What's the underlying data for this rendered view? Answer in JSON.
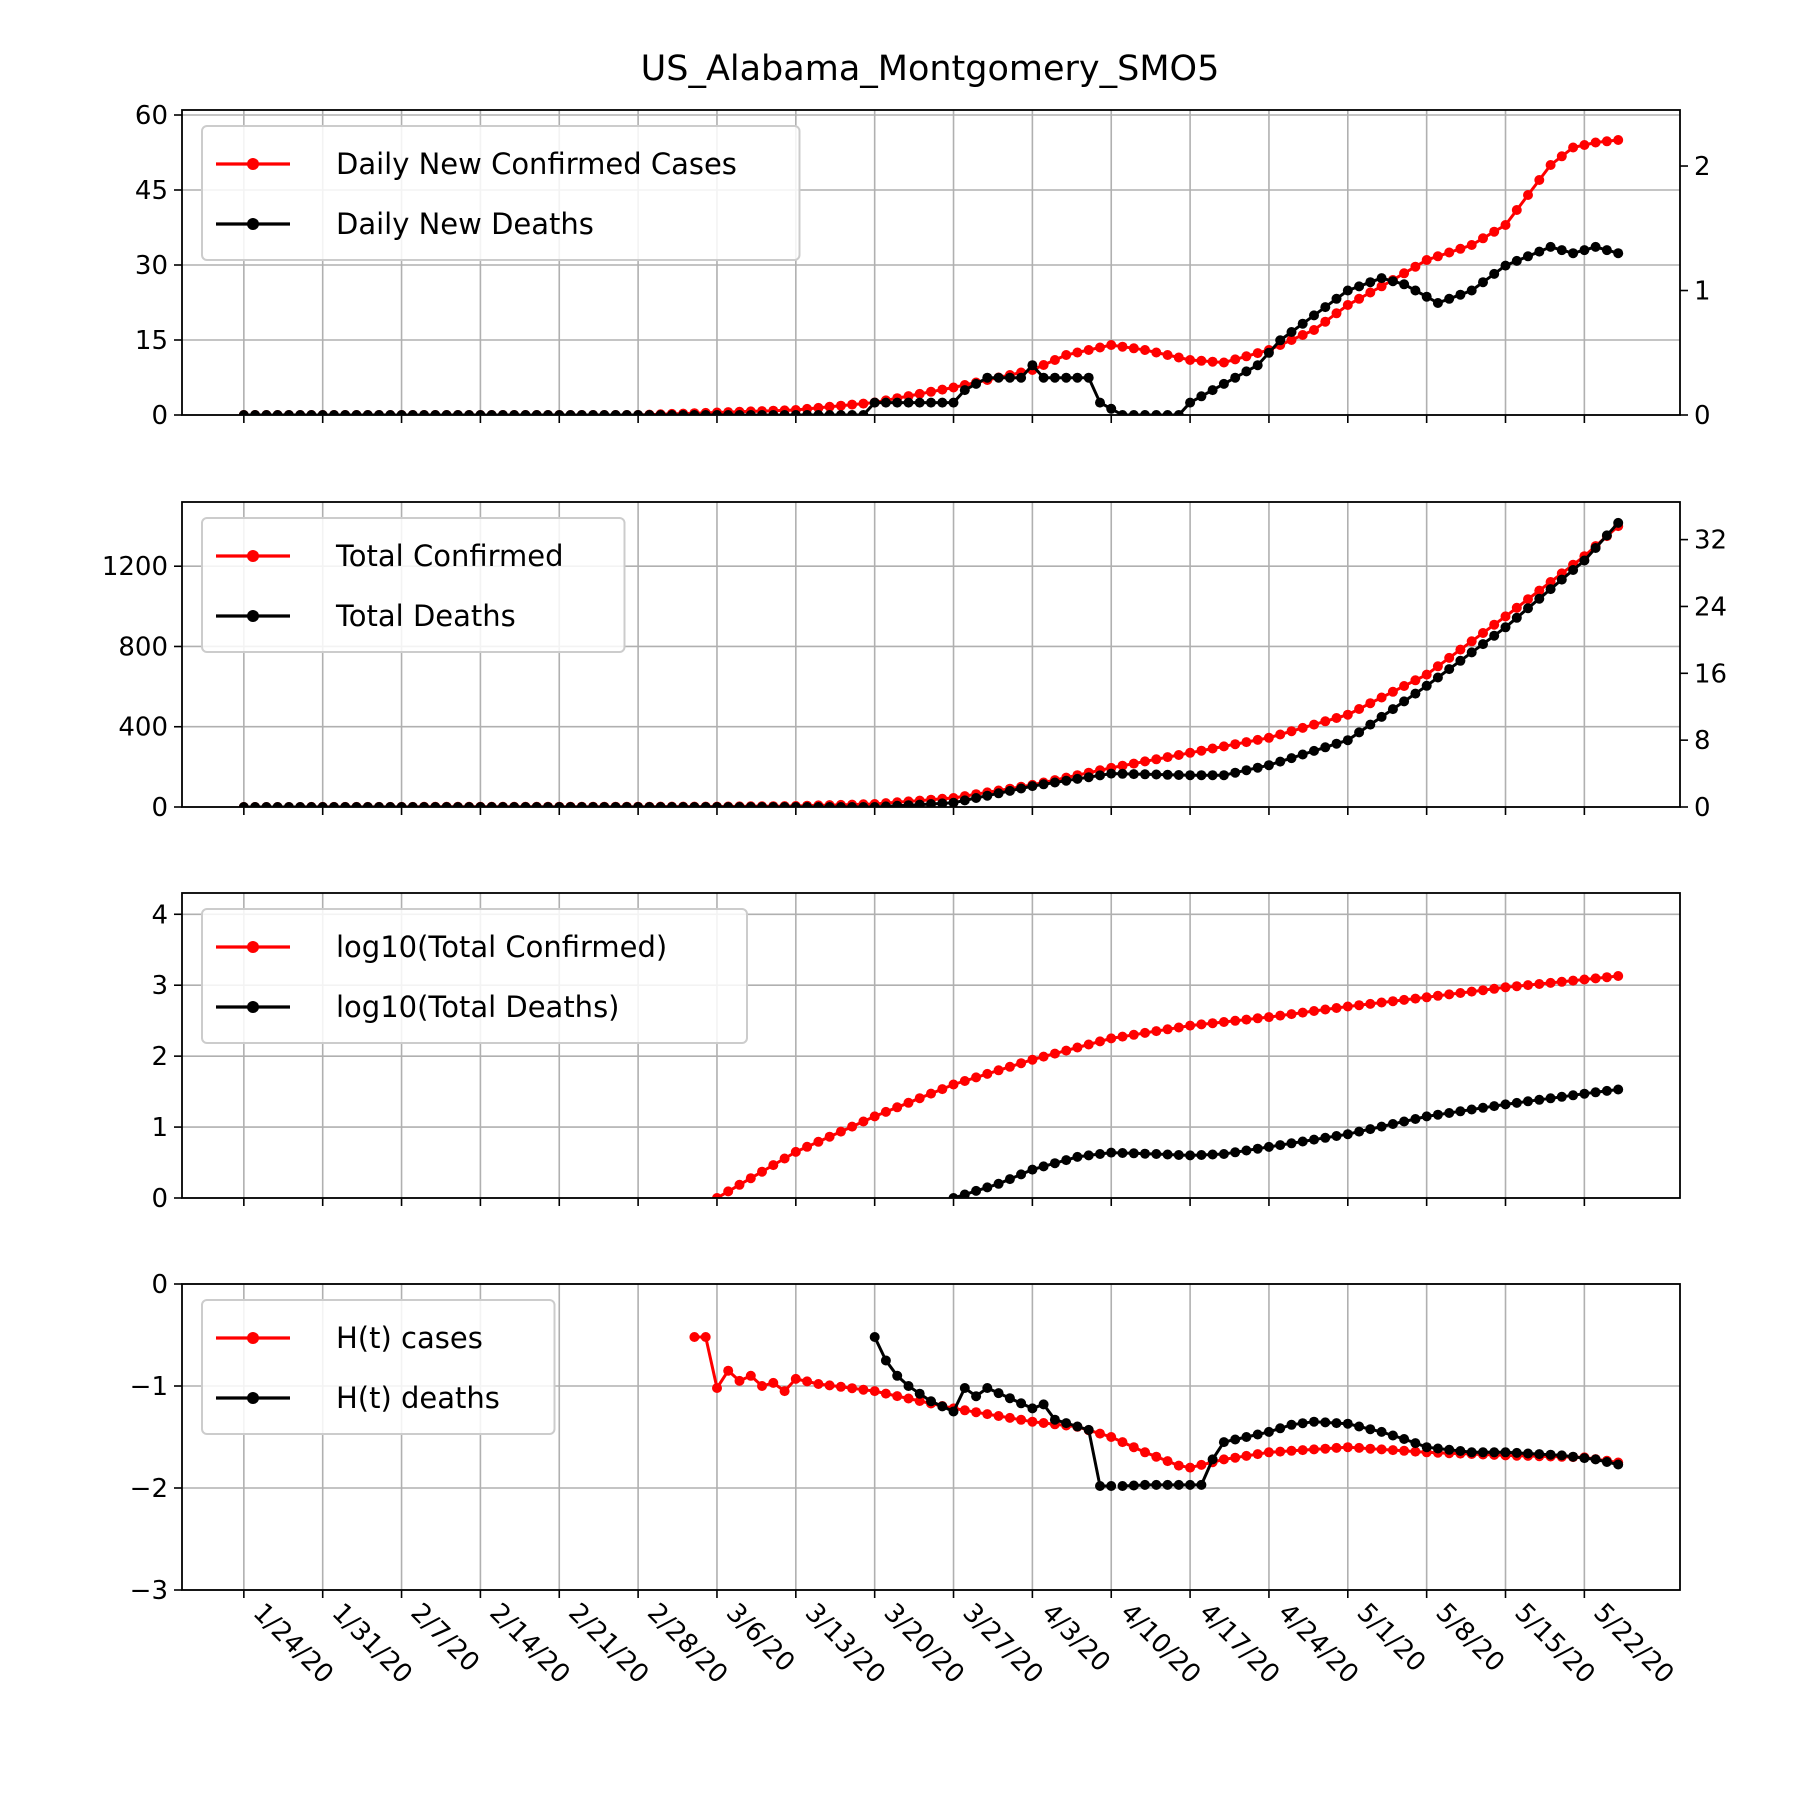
{
  "title": "US_Alabama_Montgomery_SMO5",
  "colors": {
    "cases": "#ff0000",
    "deaths": "#000000",
    "grid": "#b0b0b0"
  },
  "x_axis": {
    "date_range": [
      "1/24/20",
      "5/25/20"
    ],
    "tick_labels": [
      "1/24/20",
      "1/31/20",
      "2/7/20",
      "2/14/20",
      "2/21/20",
      "2/28/20",
      "3/6/20",
      "3/13/20",
      "3/20/20",
      "3/27/20",
      "4/3/20",
      "4/10/20",
      "4/17/20",
      "4/24/20",
      "5/1/20",
      "5/8/20",
      "5/15/20",
      "5/22/20"
    ]
  },
  "chart_data": [
    {
      "type": "line",
      "title": "US_Alabama_Montgomery_SMO5",
      "legend": {
        "placement": "top-left",
        "entries": [
          "Daily New Confirmed Cases",
          "Daily New Deaths"
        ]
      },
      "grid": true,
      "y_left": {
        "ylim": [
          0,
          61
        ],
        "ticks": [
          "0",
          "15",
          "30",
          "45",
          "60"
        ],
        "tick_values": [
          0,
          15,
          30,
          45,
          60
        ]
      },
      "y_right": {
        "ylim": [
          0,
          2.45
        ],
        "ticks": [
          "0",
          "1",
          "2"
        ],
        "tick_values": [
          0,
          1,
          2
        ]
      },
      "series": [
        {
          "name": "Daily New Confirmed Cases",
          "axis": "left",
          "color": "#ff0000",
          "points": [
            [
              "1/24/20",
              0
            ],
            [
              "2/28/20",
              0
            ],
            [
              "3/6/20",
              0.5
            ],
            [
              "3/13/20",
              1
            ],
            [
              "3/20/20",
              2.5
            ],
            [
              "3/27/20",
              5.5
            ],
            [
              "4/3/20",
              9
            ],
            [
              "4/6/20",
              12
            ],
            [
              "4/10/20",
              14
            ],
            [
              "4/13/20",
              13
            ],
            [
              "4/17/20",
              11
            ],
            [
              "4/20/20",
              10.5
            ],
            [
              "4/24/20",
              13
            ],
            [
              "4/28/20",
              17
            ],
            [
              "5/1/20",
              22
            ],
            [
              "5/5/20",
              27
            ],
            [
              "5/8/20",
              31
            ],
            [
              "5/12/20",
              34
            ],
            [
              "5/15/20",
              38
            ],
            [
              "5/17/20",
              44
            ],
            [
              "5/19/20",
              50
            ],
            [
              "5/21/20",
              53.5
            ],
            [
              "5/23/20",
              54.5
            ],
            [
              "5/25/20",
              55
            ]
          ]
        },
        {
          "name": "Daily New Deaths",
          "axis": "right",
          "color": "#000000",
          "points": [
            [
              "1/24/20",
              0
            ],
            [
              "3/19/20",
              0
            ],
            [
              "3/20/20",
              0.1
            ],
            [
              "3/27/20",
              0.1
            ],
            [
              "3/28/20",
              0.2
            ],
            [
              "3/30/20",
              0.3
            ],
            [
              "4/2/20",
              0.3
            ],
            [
              "4/3/20",
              0.4
            ],
            [
              "4/4/20",
              0.3
            ],
            [
              "4/8/20",
              0.3
            ],
            [
              "4/9/20",
              0.1
            ],
            [
              "4/11/20",
              0
            ],
            [
              "4/14/20",
              0
            ],
            [
              "4/16/20",
              0
            ],
            [
              "4/17/20",
              0.1
            ],
            [
              "4/19/20",
              0.2
            ],
            [
              "4/21/20",
              0.3
            ],
            [
              "4/23/20",
              0.4
            ],
            [
              "4/25/20",
              0.6
            ],
            [
              "4/28/20",
              0.8
            ],
            [
              "5/1/20",
              1
            ],
            [
              "5/4/20",
              1.1
            ],
            [
              "5/6/20",
              1.05
            ],
            [
              "5/9/20",
              0.9
            ],
            [
              "5/12/20",
              1
            ],
            [
              "5/15/20",
              1.2
            ],
            [
              "5/19/20",
              1.35
            ],
            [
              "5/21/20",
              1.3
            ],
            [
              "5/23/20",
              1.35
            ],
            [
              "5/25/20",
              1.3
            ]
          ]
        }
      ]
    },
    {
      "type": "line",
      "legend": {
        "placement": "top-left",
        "entries": [
          "Total Confirmed",
          "Total Deaths"
        ]
      },
      "grid": true,
      "y_left": {
        "ylim": [
          0,
          1520
        ],
        "ticks": [
          "0",
          "400",
          "800",
          "1200"
        ],
        "tick_values": [
          0,
          400,
          800,
          1200
        ]
      },
      "y_right": {
        "ylim": [
          0,
          36.5
        ],
        "ticks": [
          "0",
          "8",
          "16",
          "24",
          "32"
        ],
        "tick_values": [
          0,
          8,
          16,
          24,
          32
        ]
      },
      "series": [
        {
          "name": "Total Confirmed",
          "axis": "left",
          "color": "#ff0000",
          "points": [
            [
              "1/24/20",
              0
            ],
            [
              "3/6/20",
              2
            ],
            [
              "3/13/20",
              5
            ],
            [
              "3/20/20",
              15
            ],
            [
              "3/27/20",
              45
            ],
            [
              "4/3/20",
              110
            ],
            [
              "4/10/20",
              195
            ],
            [
              "4/17/20",
              270
            ],
            [
              "4/24/20",
              345
            ],
            [
              "5/1/20",
              460
            ],
            [
              "5/8/20",
              660
            ],
            [
              "5/15/20",
              950
            ],
            [
              "5/22/20",
              1250
            ],
            [
              "5/25/20",
              1400
            ]
          ]
        },
        {
          "name": "Total Deaths",
          "axis": "right",
          "color": "#000000",
          "points": [
            [
              "1/24/20",
              0
            ],
            [
              "3/20/20",
              0
            ],
            [
              "3/27/20",
              0.5
            ],
            [
              "4/3/20",
              2.5
            ],
            [
              "4/10/20",
              4
            ],
            [
              "4/17/20",
              3.8
            ],
            [
              "4/20/20",
              3.8
            ],
            [
              "4/24/20",
              5
            ],
            [
              "5/1/20",
              8
            ],
            [
              "5/8/20",
              14.5
            ],
            [
              "5/15/20",
              21.5
            ],
            [
              "5/22/20",
              29.5
            ],
            [
              "5/25/20",
              34
            ]
          ]
        }
      ]
    },
    {
      "type": "line",
      "legend": {
        "placement": "top-left",
        "entries": [
          "log10(Total Confirmed)",
          "log10(Total Deaths)"
        ]
      },
      "grid": true,
      "y_left": {
        "ylim": [
          0,
          4.3
        ],
        "ticks": [
          "0",
          "1",
          "2",
          "3",
          "4"
        ],
        "tick_values": [
          0,
          1,
          2,
          3,
          4
        ]
      },
      "series": [
        {
          "name": "log10(Total Confirmed)",
          "axis": "left",
          "color": "#ff0000",
          "points": [
            [
              "3/6/20",
              0
            ],
            [
              "3/13/20",
              0.65
            ],
            [
              "3/20/20",
              1.15
            ],
            [
              "3/27/20",
              1.6
            ],
            [
              "4/3/20",
              1.95
            ],
            [
              "4/10/20",
              2.25
            ],
            [
              "4/17/20",
              2.43
            ],
            [
              "4/24/20",
              2.55
            ],
            [
              "5/1/20",
              2.7
            ],
            [
              "5/8/20",
              2.83
            ],
            [
              "5/15/20",
              2.97
            ],
            [
              "5/22/20",
              3.08
            ],
            [
              "5/25/20",
              3.13
            ]
          ]
        },
        {
          "name": "log10(Total Deaths)",
          "axis": "left",
          "color": "#000000",
          "points": [
            [
              "3/27/20",
              0
            ],
            [
              "3/31/20",
              0.2
            ],
            [
              "4/3/20",
              0.4
            ],
            [
              "4/7/20",
              0.58
            ],
            [
              "4/10/20",
              0.64
            ],
            [
              "4/14/20",
              0.62
            ],
            [
              "4/17/20",
              0.6
            ],
            [
              "4/20/20",
              0.62
            ],
            [
              "4/24/20",
              0.72
            ],
            [
              "5/1/20",
              0.9
            ],
            [
              "5/8/20",
              1.15
            ],
            [
              "5/15/20",
              1.32
            ],
            [
              "5/22/20",
              1.47
            ],
            [
              "5/25/20",
              1.53
            ]
          ]
        }
      ]
    },
    {
      "type": "line",
      "legend": {
        "placement": "top-left",
        "entries": [
          "H(t) cases",
          "H(t) deaths"
        ]
      },
      "grid": true,
      "y_left": {
        "ylim": [
          -3,
          0
        ],
        "ticks": [
          "−3",
          "−2",
          "−1",
          "0"
        ],
        "tick_values": [
          -3,
          -2,
          -1,
          0
        ]
      },
      "series": [
        {
          "name": "H(t) cases",
          "axis": "left",
          "color": "#ff0000",
          "points": [
            [
              "3/4/20",
              -0.52
            ],
            [
              "3/5/20",
              -0.52
            ],
            [
              "3/6/20",
              -1.02
            ],
            [
              "3/7/20",
              -0.85
            ],
            [
              "3/8/20",
              -0.95
            ],
            [
              "3/9/20",
              -0.9
            ],
            [
              "3/10/20",
              -1.0
            ],
            [
              "3/11/20",
              -0.97
            ],
            [
              "3/12/20",
              -1.05
            ],
            [
              "3/13/20",
              -0.93
            ],
            [
              "3/15/20",
              -0.98
            ],
            [
              "3/20/20",
              -1.05
            ],
            [
              "3/27/20",
              -1.22
            ],
            [
              "4/3/20",
              -1.35
            ],
            [
              "4/7/20",
              -1.4
            ],
            [
              "4/10/20",
              -1.5
            ],
            [
              "4/13/20",
              -1.65
            ],
            [
              "4/16/20",
              -1.78
            ],
            [
              "4/17/20",
              -1.8
            ],
            [
              "4/20/20",
              -1.72
            ],
            [
              "4/24/20",
              -1.65
            ],
            [
              "5/1/20",
              -1.6
            ],
            [
              "5/8/20",
              -1.65
            ],
            [
              "5/15/20",
              -1.68
            ],
            [
              "5/22/20",
              -1.7
            ],
            [
              "5/25/20",
              -1.75
            ]
          ]
        },
        {
          "name": "H(t) deaths",
          "axis": "left",
          "color": "#000000",
          "points": [
            [
              "3/20/20",
              -0.52
            ],
            [
              "3/21/20",
              -0.75
            ],
            [
              "3/22/20",
              -0.9
            ],
            [
              "3/23/20",
              -1.0
            ],
            [
              "3/25/20",
              -1.15
            ],
            [
              "3/27/20",
              -1.25
            ],
            [
              "3/28/20",
              -1.02
            ],
            [
              "3/29/20",
              -1.1
            ],
            [
              "3/30/20",
              -1.02
            ],
            [
              "4/1/20",
              -1.12
            ],
            [
              "4/3/20",
              -1.22
            ],
            [
              "4/4/20",
              -1.18
            ],
            [
              "4/5/20",
              -1.33
            ],
            [
              "4/8/20",
              -1.43
            ],
            [
              "4/9/20",
              -1.98
            ],
            [
              "4/10/20",
              -1.98
            ],
            null,
            [
              "4/11/20",
              -1.98
            ],
            [
              "4/13/20",
              -1.97
            ],
            [
              "4/15/20",
              -1.97
            ],
            [
              "4/17/20",
              -1.97
            ],
            [
              "4/18/20",
              -1.97
            ],
            [
              "4/19/20",
              -1.72
            ],
            [
              "4/20/20",
              -1.55
            ],
            [
              "4/22/20",
              -1.5
            ],
            [
              "4/24/20",
              -1.45
            ],
            [
              "4/26/20",
              -1.38
            ],
            [
              "4/28/20",
              -1.35
            ],
            [
              "5/1/20",
              -1.37
            ],
            [
              "5/4/20",
              -1.45
            ],
            [
              "5/6/20",
              -1.52
            ],
            [
              "5/8/20",
              -1.6
            ],
            [
              "5/12/20",
              -1.65
            ],
            [
              "5/15/20",
              -1.65
            ],
            [
              "5/20/20",
              -1.68
            ],
            [
              "5/23/20",
              -1.72
            ],
            [
              "5/25/20",
              -1.77
            ]
          ]
        }
      ]
    }
  ]
}
